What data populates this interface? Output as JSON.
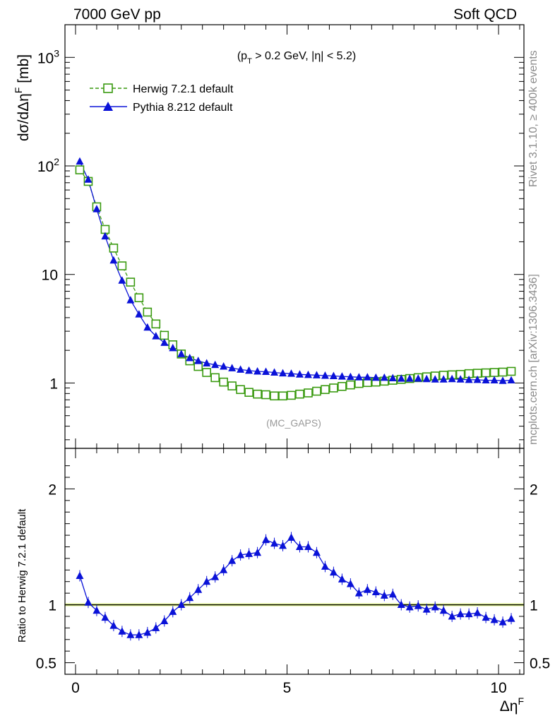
{
  "header": {
    "left": "7000 GeV pp",
    "right": "Soft QCD"
  },
  "side_labels": {
    "rivet": "Rivet 3.1.10, ≥ 400k events",
    "site": "mcplots.cern.ch [arXiv:1306.3436]"
  },
  "colors": {
    "herwig": "#3a9a10",
    "pythia": "#0a12d8",
    "band": "#d8f070"
  },
  "chart_data": [
    {
      "type": "scatter",
      "scale": "log",
      "cut_label": "(p_T > 0.2 GeV, |η| < 5.2)",
      "watermark": "(MC_GAPS)",
      "ylabel": "dσ/dΔη^F [mb]",
      "ylim": [
        0.25,
        2000
      ],
      "xlim": [
        -0.25,
        10.6
      ],
      "y_ticks": [
        {
          "v": 1,
          "text": "1"
        },
        {
          "v": 10,
          "text": "10"
        },
        {
          "v": 100,
          "text": "10",
          "sup": "2"
        },
        {
          "v": 1000,
          "text": "10",
          "sup": "3"
        }
      ],
      "series": [
        {
          "name": "Herwig 7.2.1 default",
          "marker": "open-square",
          "line": "dashed",
          "x": [
            0.1,
            0.3,
            0.5,
            0.7,
            0.9,
            1.1,
            1.3,
            1.5,
            1.7,
            1.9,
            2.1,
            2.3,
            2.5,
            2.7,
            2.9,
            3.1,
            3.3,
            3.5,
            3.7,
            3.9,
            4.1,
            4.3,
            4.5,
            4.7,
            4.9,
            5.1,
            5.3,
            5.5,
            5.7,
            5.9,
            6.1,
            6.3,
            6.5,
            6.7,
            6.9,
            7.1,
            7.3,
            7.5,
            7.7,
            7.9,
            8.1,
            8.3,
            8.5,
            8.7,
            8.9,
            9.1,
            9.3,
            9.5,
            9.7,
            9.9,
            10.1,
            10.3
          ],
          "values": [
            92,
            72,
            42,
            26,
            17.5,
            12,
            8.5,
            6.1,
            4.5,
            3.5,
            2.75,
            2.25,
            1.85,
            1.6,
            1.42,
            1.25,
            1.12,
            1.02,
            0.94,
            0.87,
            0.82,
            0.79,
            0.78,
            0.76,
            0.76,
            0.77,
            0.79,
            0.81,
            0.84,
            0.87,
            0.9,
            0.93,
            0.96,
            0.99,
            1.01,
            1.02,
            1.04,
            1.06,
            1.08,
            1.1,
            1.12,
            1.14,
            1.16,
            1.18,
            1.19,
            1.2,
            1.22,
            1.23,
            1.24,
            1.25,
            1.26,
            1.28
          ]
        },
        {
          "name": "Pythia 8.212 default",
          "marker": "filled-triangle",
          "line": "solid",
          "x": [
            0.1,
            0.3,
            0.5,
            0.7,
            0.9,
            1.1,
            1.3,
            1.5,
            1.7,
            1.9,
            2.1,
            2.3,
            2.5,
            2.7,
            2.9,
            3.1,
            3.3,
            3.5,
            3.7,
            3.9,
            4.1,
            4.3,
            4.5,
            4.7,
            4.9,
            5.1,
            5.3,
            5.5,
            5.7,
            5.9,
            6.1,
            6.3,
            6.5,
            6.7,
            6.9,
            7.1,
            7.3,
            7.5,
            7.7,
            7.9,
            8.1,
            8.3,
            8.5,
            8.7,
            8.9,
            9.1,
            9.3,
            9.5,
            9.7,
            9.9,
            10.1,
            10.3
          ],
          "values": [
            110,
            75,
            40,
            22.5,
            13.5,
            8.8,
            5.8,
            4.3,
            3.25,
            2.7,
            2.35,
            2.1,
            1.85,
            1.7,
            1.6,
            1.52,
            1.47,
            1.42,
            1.37,
            1.33,
            1.3,
            1.28,
            1.27,
            1.25,
            1.23,
            1.22,
            1.2,
            1.19,
            1.18,
            1.17,
            1.16,
            1.15,
            1.14,
            1.13,
            1.13,
            1.12,
            1.12,
            1.11,
            1.1,
            1.1,
            1.1,
            1.09,
            1.08,
            1.08,
            1.09,
            1.08,
            1.07,
            1.07,
            1.06,
            1.06,
            1.05,
            1.06
          ]
        }
      ]
    },
    {
      "type": "line",
      "ylabel": "Ratio to Herwig 7.2.1 default",
      "xlabel": "Δη^F",
      "ylim": [
        0.4,
        2.35
      ],
      "xlim": [
        -0.25,
        10.6
      ],
      "y_ticks": [
        {
          "v": 0.5,
          "text": "0.5"
        },
        {
          "v": 1,
          "text": "1"
        },
        {
          "v": 2,
          "text": "2"
        }
      ],
      "x_ticks": [
        {
          "v": 0,
          "text": "0"
        },
        {
          "v": 5,
          "text": "5"
        },
        {
          "v": 10,
          "text": "10"
        }
      ],
      "reference": 1,
      "series": [
        {
          "name": "Pythia 8.212 default",
          "x": [
            0.1,
            0.3,
            0.5,
            0.7,
            0.9,
            1.1,
            1.3,
            1.5,
            1.7,
            1.9,
            2.1,
            2.3,
            2.5,
            2.7,
            2.9,
            3.1,
            3.3,
            3.5,
            3.7,
            3.9,
            4.1,
            4.3,
            4.5,
            4.7,
            4.9,
            5.1,
            5.3,
            5.5,
            5.7,
            5.9,
            6.1,
            6.3,
            6.5,
            6.7,
            6.9,
            7.1,
            7.3,
            7.5,
            7.7,
            7.9,
            8.1,
            8.3,
            8.5,
            8.7,
            8.9,
            9.1,
            9.3,
            9.5,
            9.7,
            9.9,
            10.1,
            10.3
          ],
          "values": [
            1.25,
            1.02,
            0.95,
            0.89,
            0.82,
            0.77,
            0.74,
            0.74,
            0.76,
            0.8,
            0.86,
            0.94,
            1.0,
            1.06,
            1.13,
            1.2,
            1.24,
            1.3,
            1.38,
            1.43,
            1.44,
            1.45,
            1.56,
            1.53,
            1.51,
            1.58,
            1.5,
            1.5,
            1.45,
            1.33,
            1.28,
            1.22,
            1.18,
            1.1,
            1.13,
            1.11,
            1.08,
            1.09,
            1.0,
            0.98,
            0.99,
            0.96,
            0.98,
            0.95,
            0.9,
            0.92,
            0.92,
            0.93,
            0.89,
            0.87,
            0.85,
            0.88
          ]
        }
      ]
    }
  ]
}
